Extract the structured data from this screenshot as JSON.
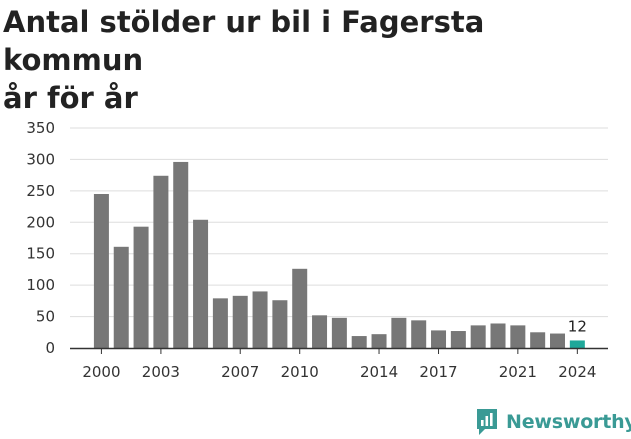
{
  "title_lines": [
    "Antal stölder ur bil i Fagersta kommun",
    "år för år"
  ],
  "brand": {
    "name": "Newsworthy",
    "icon": "newsworthy-chart-bubble-icon",
    "color": "#3a9a95"
  },
  "chart_data": {
    "type": "bar",
    "title": "Antal stölder ur bil i Fagersta kommun år för år",
    "xlabel": "",
    "ylabel": "",
    "categories": [
      2000,
      2001,
      2002,
      2003,
      2004,
      2005,
      2006,
      2007,
      2008,
      2009,
      2010,
      2011,
      2012,
      2013,
      2014,
      2015,
      2016,
      2017,
      2018,
      2019,
      2020,
      2021,
      2022,
      2023,
      2024
    ],
    "values": [
      245,
      161,
      193,
      274,
      296,
      204,
      79,
      83,
      90,
      76,
      126,
      52,
      48,
      19,
      22,
      48,
      44,
      28,
      27,
      36,
      39,
      36,
      25,
      23,
      12
    ],
    "x_tick_labels": [
      "2000",
      "2003",
      "2007",
      "2010",
      "2014",
      "2017",
      "2021",
      "2024"
    ],
    "y_ticks": [
      0,
      50,
      100,
      150,
      200,
      250,
      300,
      350
    ],
    "ylim": [
      0,
      350
    ],
    "grid": true,
    "bar_color": "#777777",
    "highlight": {
      "category": 2024,
      "color": "#1fa89a",
      "label": "12"
    }
  }
}
